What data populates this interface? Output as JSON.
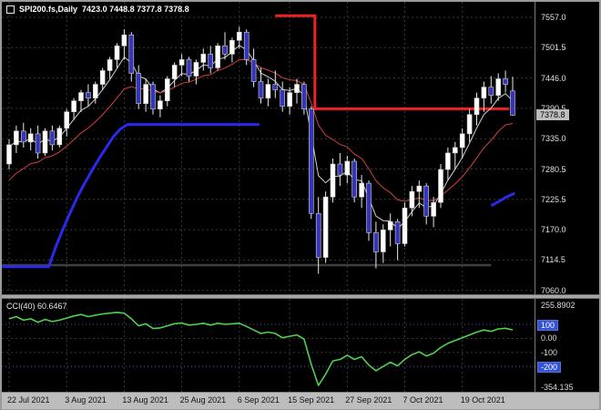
{
  "header": {
    "symbol": "SPI200.fs,Daily",
    "ohlc": "7423.0 7448.8 7377.8 7378.8"
  },
  "colors": {
    "background": "#000000",
    "grid": "#3a3a3a",
    "bull": "#ffffff",
    "bear": "#3434bd",
    "candle_outline": "#cfcfcf",
    "wick": "#e8e8e8",
    "ma_fast": "#cfcfcf",
    "ma_slow": "#d04040",
    "support_line": "#2a2aee",
    "resistance_line": "#ee2222",
    "flat_line": "#3f3f3f",
    "cci_line": "#50d050",
    "level_line": "#3b55cc",
    "price_badge_bg": "#bdbdbd",
    "level_badge_bg": "#3353d6",
    "axis_text": "#e0e0e0",
    "time_axis_bg": "#bdbdbd",
    "time_axis_text": "#111111"
  },
  "chart_data": {
    "type": "candlestick",
    "title": "SPI200.fs Daily",
    "x_tick_labels": [
      "22 Jul 2021",
      "3 Aug 2021",
      "13 Aug 2021",
      "25 Aug 2021",
      "6 Sep 2021",
      "15 Sep 2021",
      "27 Sep 2021",
      "7 Oct 2021",
      "19 Oct 2021"
    ],
    "x_tick_indices": [
      0,
      8,
      16,
      24,
      32,
      39,
      47,
      55,
      63
    ],
    "price_axis": {
      "labels": [
        "7557.0",
        "7501.5",
        "7446.0",
        "7390.5",
        "7335.0",
        "7280.5",
        "7225.5",
        "7170.0",
        "7114.5",
        "7060.0"
      ],
      "current": "7378.8"
    },
    "candles": [
      [
        7290,
        7335,
        7280,
        7325
      ],
      [
        7325,
        7360,
        7310,
        7350
      ],
      [
        7350,
        7365,
        7320,
        7330
      ],
      [
        7330,
        7355,
        7315,
        7345
      ],
      [
        7345,
        7360,
        7300,
        7310
      ],
      [
        7310,
        7355,
        7305,
        7350
      ],
      [
        7350,
        7360,
        7315,
        7325
      ],
      [
        7325,
        7360,
        7320,
        7355
      ],
      [
        7355,
        7390,
        7340,
        7385
      ],
      [
        7385,
        7410,
        7370,
        7405
      ],
      [
        7405,
        7425,
        7385,
        7420
      ],
      [
        7420,
        7435,
        7395,
        7410
      ],
      [
        7410,
        7440,
        7400,
        7435
      ],
      [
        7435,
        7465,
        7425,
        7460
      ],
      [
        7460,
        7485,
        7445,
        7480
      ],
      [
        7480,
        7510,
        7465,
        7505
      ],
      [
        7505,
        7535,
        7480,
        7525
      ],
      [
        7525,
        7530,
        7440,
        7455
      ],
      [
        7455,
        7470,
        7390,
        7400
      ],
      [
        7400,
        7445,
        7385,
        7435
      ],
      [
        7435,
        7440,
        7380,
        7390
      ],
      [
        7390,
        7415,
        7375,
        7405
      ],
      [
        7405,
        7450,
        7395,
        7445
      ],
      [
        7445,
        7475,
        7430,
        7470
      ],
      [
        7470,
        7490,
        7450,
        7480
      ],
      [
        7480,
        7485,
        7440,
        7450
      ],
      [
        7450,
        7480,
        7435,
        7475
      ],
      [
        7475,
        7500,
        7460,
        7490
      ],
      [
        7490,
        7505,
        7455,
        7465
      ],
      [
        7465,
        7510,
        7460,
        7505
      ],
      [
        7505,
        7530,
        7480,
        7490
      ],
      [
        7490,
        7520,
        7475,
        7515
      ],
      [
        7515,
        7540,
        7500,
        7530
      ],
      [
        7530,
        7535,
        7470,
        7480
      ],
      [
        7480,
        7500,
        7430,
        7440
      ],
      [
        7440,
        7465,
        7400,
        7410
      ],
      [
        7410,
        7445,
        7395,
        7435
      ],
      [
        7435,
        7460,
        7410,
        7425
      ],
      [
        7425,
        7440,
        7385,
        7395
      ],
      [
        7395,
        7430,
        7380,
        7420
      ],
      [
        7420,
        7445,
        7400,
        7435
      ],
      [
        7435,
        7440,
        7380,
        7390
      ],
      [
        7390,
        7395,
        7190,
        7200
      ],
      [
        7200,
        7230,
        7090,
        7120
      ],
      [
        7120,
        7240,
        7110,
        7230
      ],
      [
        7230,
        7300,
        7220,
        7290
      ],
      [
        7290,
        7310,
        7250,
        7270
      ],
      [
        7270,
        7305,
        7255,
        7295
      ],
      [
        7295,
        7300,
        7220,
        7230
      ],
      [
        7230,
        7270,
        7210,
        7255
      ],
      [
        7255,
        7260,
        7150,
        7165
      ],
      [
        7165,
        7185,
        7100,
        7130
      ],
      [
        7130,
        7180,
        7110,
        7170
      ],
      [
        7170,
        7200,
        7140,
        7185
      ],
      [
        7185,
        7190,
        7115,
        7145
      ],
      [
        7145,
        7220,
        7140,
        7210
      ],
      [
        7210,
        7250,
        7195,
        7240
      ],
      [
        7240,
        7260,
        7210,
        7250
      ],
      [
        7250,
        7255,
        7180,
        7195
      ],
      [
        7195,
        7230,
        7175,
        7220
      ],
      [
        7220,
        7290,
        7210,
        7280
      ],
      [
        7280,
        7320,
        7260,
        7310
      ],
      [
        7310,
        7330,
        7280,
        7320
      ],
      [
        7320,
        7355,
        7300,
        7345
      ],
      [
        7345,
        7390,
        7330,
        7380
      ],
      [
        7380,
        7420,
        7360,
        7410
      ],
      [
        7410,
        7440,
        7385,
        7430
      ],
      [
        7430,
        7450,
        7400,
        7415
      ],
      [
        7415,
        7455,
        7405,
        7445
      ],
      [
        7445,
        7460,
        7420,
        7435
      ],
      [
        7423.0,
        7448.8,
        7377.8,
        7378.8
      ]
    ],
    "moving_averages": [
      {
        "name": "fast-ma",
        "period": 5,
        "start_value": 7320,
        "color_key": "ma_fast"
      },
      {
        "name": "slow-ma",
        "period": 13,
        "start_value": 7250,
        "color_key": "ma_slow"
      }
    ],
    "objects": {
      "resistance": {
        "width": 3,
        "points": [
          [
            37,
            7560
          ],
          [
            42.5,
            7560
          ],
          [
            42.5,
            7390.5
          ],
          [
            69.5,
            7390.5
          ]
        ]
      },
      "support_segments": [
        [
          [
            -1,
            7103
          ],
          [
            5.5,
            7103
          ],
          [
            6.5,
            7140
          ],
          [
            7.5,
            7172
          ],
          [
            8.5,
            7202
          ],
          [
            9.5,
            7230
          ],
          [
            10.5,
            7255
          ],
          [
            11.5,
            7278
          ],
          [
            12.5,
            7300
          ],
          [
            13.5,
            7320
          ],
          [
            14.5,
            7340
          ],
          [
            15.5,
            7354
          ],
          [
            16.5,
            7362
          ],
          [
            34.8,
            7362
          ]
        ],
        [
          [
            67,
            7214
          ],
          [
            68,
            7221
          ],
          [
            69,
            7229
          ],
          [
            70.3,
            7237
          ]
        ]
      ],
      "flat_line": {
        "width": 2.5,
        "points": [
          [
            -1,
            7106
          ],
          [
            67,
            7106
          ]
        ]
      }
    },
    "indicator": {
      "name": "CCI",
      "period": 40,
      "current": 60.6467,
      "label": "CCI(40) 60.6467",
      "axis_max": 255.8902,
      "axis_min": -354.135,
      "axis_labels": [
        {
          "text": "255.8902",
          "value": 255.8902,
          "badge": false
        },
        {
          "text": "100",
          "value": 100,
          "badge": true
        },
        {
          "text": "0.00",
          "value": 0,
          "badge": false
        },
        {
          "text": "-100",
          "value": -100,
          "badge": false
        },
        {
          "text": "-200",
          "value": -200,
          "badge": true
        },
        {
          "text": "-354.135",
          "value": -354.135,
          "badge": false
        }
      ],
      "levels": [
        100,
        -200
      ],
      "grid_levels": [
        0,
        -100
      ],
      "values": [
        140,
        155,
        130,
        140,
        115,
        135,
        120,
        130,
        145,
        160,
        170,
        155,
        165,
        175,
        180,
        185,
        180,
        140,
        90,
        105,
        70,
        75,
        90,
        105,
        110,
        95,
        100,
        108,
        95,
        108,
        100,
        104,
        108,
        85,
        60,
        35,
        45,
        35,
        5,
        15,
        25,
        -5,
        -185,
        -335,
        -255,
        -160,
        -150,
        -120,
        -150,
        -130,
        -190,
        -230,
        -200,
        -170,
        -195,
        -150,
        -115,
        -95,
        -125,
        -105,
        -65,
        -35,
        -15,
        5,
        25,
        45,
        60,
        50,
        68,
        72,
        60.6467
      ]
    }
  }
}
